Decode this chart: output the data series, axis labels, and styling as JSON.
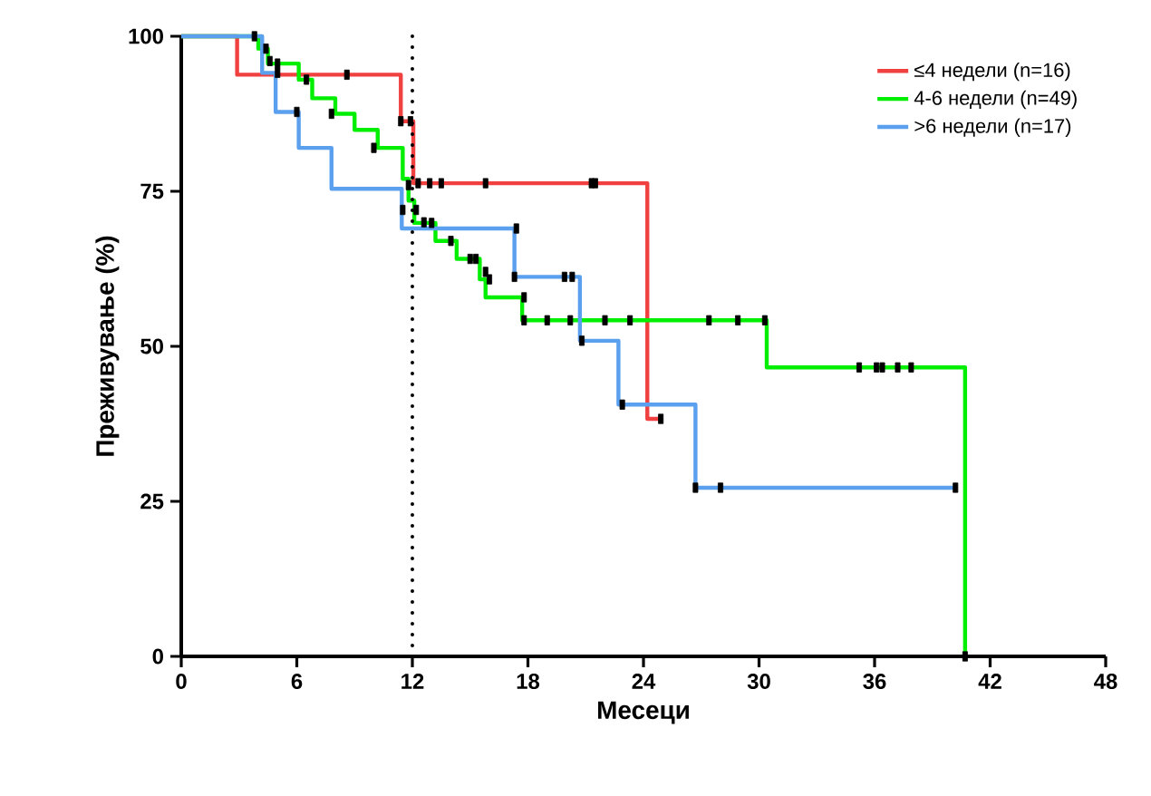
{
  "chart_data": {
    "type": "step",
    "xlabel": "Месеци",
    "ylabel": "Преживување (%)",
    "xlim": [
      0,
      48
    ],
    "xticks": [
      0,
      6,
      12,
      18,
      24,
      30,
      36,
      42,
      48
    ],
    "ylim": [
      0,
      100
    ],
    "yticks": [
      0,
      25,
      50,
      75,
      100
    ],
    "grid": false,
    "legend": "top right",
    "marker": "none",
    "line_style": "solid",
    "ref_lines": [
      {
        "axis": "x",
        "value": 12,
        "color": "#000000",
        "line_style": "dotted"
      }
    ],
    "series": [
      {
        "name": "≤4 недели (n=16)",
        "color": "#f04040",
        "x": [
          0,
          2.9,
          11.4,
          12.05,
          24.2,
          24.9
        ],
        "values": [
          100,
          93.8,
          86.3,
          76.3,
          38.3,
          38.3
        ]
      },
      {
        "name": "4-6 недели (n=49)",
        "color": "#00ee00",
        "x": [
          0,
          4.0,
          4.5,
          6.1,
          6.8,
          8.0,
          9.0,
          10.2,
          11.5,
          11.8,
          12.1,
          13.2,
          14.3,
          15.5,
          15.8,
          17.7,
          30.4,
          40.7
        ],
        "values": [
          100,
          98,
          95.6,
          93,
          90,
          87.5,
          84.9,
          82,
          77,
          73.5,
          69.9,
          67,
          64.1,
          60.8,
          57.9,
          54.2,
          46.6,
          0
        ]
      },
      {
        "name": ">6 недели (n=17)",
        "color": "#5aa0ee",
        "x": [
          0,
          4.2,
          4.9,
          6.1,
          7.8,
          11.45,
          17.3,
          20.7,
          22.7,
          26.7,
          40.2
        ],
        "values": [
          100,
          94.1,
          87.8,
          82,
          75.4,
          69.0,
          61.2,
          50.9,
          40.6,
          27.2,
          27.2
        ]
      },
      {
        "type": "scatter",
        "color": "#000000",
        "marker": "square",
        "x": [
          8.6,
          11.4,
          11.9,
          12.3,
          12.9,
          13.5,
          15.8,
          21.3,
          21.5,
          24.9
        ],
        "values": [
          93.8,
          86.3,
          86.3,
          76.3,
          76.3,
          76.3,
          76.3,
          76.3,
          76.3,
          38.3
        ]
      },
      {
        "type": "scatter",
        "color": "#000000",
        "marker": "square",
        "x": [
          3.8,
          4.4,
          5.0,
          6.5,
          7.8,
          10.0,
          11.8,
          12.2,
          12.6,
          13.0,
          14.0,
          15.0,
          15.3,
          15.8,
          16.0,
          17.8,
          17.8,
          19.0,
          20.2,
          22.0,
          23.3,
          27.4,
          28.9,
          30.3,
          35.2,
          36.1,
          36.4,
          37.2,
          37.9,
          40.7
        ],
        "values": [
          100,
          98,
          95.6,
          93,
          87.5,
          82,
          76,
          72,
          70,
          69.9,
          67,
          64.1,
          64.1,
          62,
          60.8,
          57.9,
          54.2,
          54.2,
          54.2,
          54.2,
          54.2,
          54.2,
          54.2,
          54.2,
          46.6,
          46.6,
          46.6,
          46.6,
          46.6,
          0
        ]
      },
      {
        "type": "scatter",
        "color": "#000000",
        "marker": "square",
        "x": [
          4.6,
          5.0,
          6.0,
          11.5,
          17.4,
          17.3,
          19.9,
          20.3,
          20.8,
          22.9,
          26.7,
          28.0,
          40.2
        ],
        "values": [
          96,
          94.1,
          87.8,
          72,
          69.0,
          61.2,
          61.2,
          61.2,
          50.9,
          40.6,
          27.2,
          27.2,
          27.2
        ]
      }
    ]
  }
}
